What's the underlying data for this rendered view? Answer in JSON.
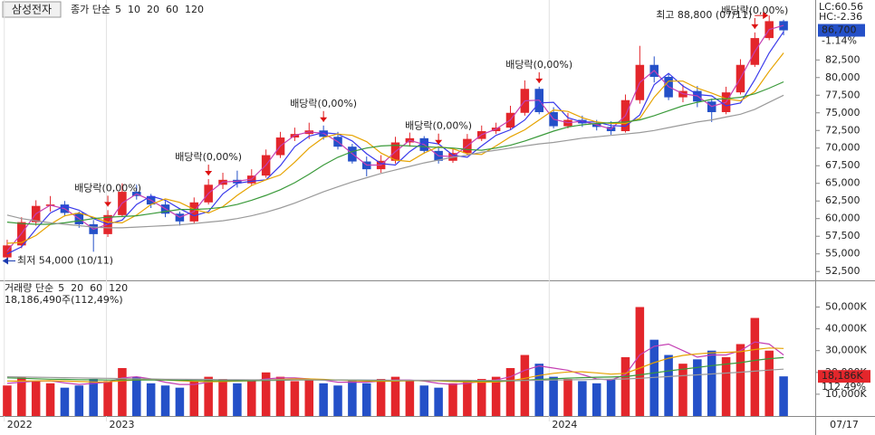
{
  "chart_data": [
    {
      "type": "candlestick",
      "title": "삼성전자",
      "legend_title": "종가 단순",
      "open": [
        54500,
        56200,
        59500,
        61800,
        62000,
        60800,
        59200,
        57800,
        60500,
        63800,
        63200,
        62000,
        60700,
        59600,
        62300,
        64800,
        65500,
        65000,
        66100,
        69000,
        71500,
        72000,
        72500,
        71600,
        70200,
        68100,
        67000,
        68200,
        70800,
        71400,
        69600,
        68200,
        69300,
        71300,
        72400,
        72900,
        75000,
        78400,
        75100,
        73100,
        74000,
        73500,
        73000,
        72400,
        76800,
        81800,
        80100,
        77200,
        78100,
        76600,
        75100,
        77900,
        81800,
        85600,
        88000
      ],
      "high": [
        57000,
        60200,
        62600,
        63200,
        62500,
        61000,
        59800,
        61200,
        65000,
        64800,
        63500,
        62500,
        61000,
        63000,
        65600,
        66500,
        66800,
        67000,
        69800,
        72300,
        72900,
        73600,
        73200,
        72300,
        70600,
        68800,
        69000,
        71600,
        72200,
        71700,
        70000,
        70000,
        72000,
        73200,
        73600,
        76000,
        79600,
        78700,
        75800,
        75000,
        74600,
        74000,
        73800,
        77600,
        84500,
        83000,
        80600,
        79000,
        78800,
        77000,
        78700,
        82600,
        86400,
        88800,
        88200
      ],
      "low": [
        54000,
        55800,
        59000,
        61000,
        60300,
        58700,
        55300,
        57400,
        60200,
        62700,
        61500,
        60200,
        59000,
        59300,
        62000,
        64200,
        64400,
        64700,
        65800,
        68600,
        71000,
        71300,
        71200,
        69800,
        67800,
        66000,
        66500,
        67800,
        70200,
        69200,
        67800,
        67900,
        69000,
        71000,
        72000,
        72600,
        74600,
        74800,
        72800,
        72800,
        73000,
        72500,
        71900,
        72200,
        76300,
        79300,
        76800,
        76500,
        75800,
        73700,
        74800,
        77600,
        81500,
        85300,
        86000
      ],
      "close": [
        56200,
        59500,
        61800,
        62000,
        60800,
        59200,
        57800,
        60500,
        63800,
        63200,
        62000,
        60700,
        59600,
        62300,
        64800,
        65500,
        65000,
        66100,
        69000,
        71500,
        72000,
        72500,
        71600,
        70200,
        68100,
        67000,
        68200,
        70800,
        71400,
        69600,
        68200,
        69300,
        71300,
        72400,
        72900,
        75000,
        78400,
        75100,
        73100,
        74000,
        73500,
        73000,
        72400,
        76800,
        81800,
        80100,
        77200,
        78100,
        76600,
        75100,
        77900,
        81800,
        85600,
        88000,
        86700
      ],
      "up_color": "#e3262b",
      "down_color": "#2450c8",
      "series": [
        {
          "name": "5",
          "color": "#c43fb3",
          "values": [
            55400,
            57900,
            60700,
            61900,
            61400,
            60000,
            58500,
            59200,
            62200,
            63500,
            62600,
            61400,
            60200,
            61000,
            63600,
            65200,
            65300,
            65600,
            67600,
            70300,
            71800,
            72300,
            72100,
            70900,
            69200,
            67600,
            67600,
            69500,
            71100,
            70500,
            68900,
            68800,
            70300,
            71900,
            72700,
            74000,
            76700,
            76800,
            74100,
            73600,
            73800,
            73300,
            72700,
            74600,
            79300,
            81000,
            78700,
            77700,
            77400,
            75900,
            76500,
            79900,
            83700,
            86800,
            87400
          ]
        },
        {
          "name": "10",
          "color": "#3a3aeb",
          "values": [
            55000,
            56000,
            58500,
            60800,
            61800,
            61200,
            60000,
            59200,
            59800,
            62000,
            63200,
            62600,
            61400,
            60400,
            61000,
            63500,
            65000,
            65300,
            65500,
            67500,
            70200,
            71700,
            72200,
            72000,
            71000,
            69200,
            67800,
            67600,
            69500,
            70900,
            70600,
            69000,
            68700,
            70300,
            71800,
            72600,
            74000,
            76400,
            76500,
            74300,
            73700,
            73700,
            73200,
            73100,
            74700,
            79000,
            80600,
            78800,
            77600,
            77400,
            76000,
            76400,
            79700,
            83500,
            86500
          ]
        },
        {
          "name": "20",
          "color": "#e6a300",
          "values": [
            56500,
            56600,
            57600,
            59200,
            60400,
            60800,
            60200,
            59500,
            59400,
            60500,
            62000,
            62800,
            62300,
            61300,
            60800,
            61700,
            63300,
            64700,
            65500,
            66200,
            68000,
            70000,
            71500,
            72000,
            71800,
            70900,
            69300,
            68300,
            68100,
            69300,
            70200,
            69900,
            69200,
            69100,
            70300,
            71600,
            72600,
            74000,
            75400,
            75200,
            74300,
            73700,
            73500,
            73500,
            74200,
            77200,
            79500,
            79500,
            78500,
            77800,
            77000,
            76700,
            78000,
            80900,
            83500
          ]
        },
        {
          "name": "60",
          "color": "#3a9a3a",
          "values": [
            59500,
            59300,
            59200,
            59200,
            59400,
            59700,
            60000,
            60200,
            60300,
            60400,
            60700,
            61000,
            61300,
            61300,
            61400,
            61600,
            62000,
            62600,
            63300,
            64100,
            65100,
            66300,
            67600,
            68700,
            69500,
            70000,
            70300,
            70400,
            70300,
            70200,
            70100,
            70000,
            69800,
            69700,
            70000,
            70400,
            71000,
            71700,
            72400,
            73000,
            73300,
            73500,
            73600,
            73700,
            74000,
            74600,
            75300,
            76000,
            76500,
            76900,
            77000,
            77200,
            77700,
            78500,
            79400
          ]
        },
        {
          "name": "120",
          "color": "#9a9a9a",
          "values": [
            60500,
            60000,
            59700,
            59400,
            59200,
            59000,
            58800,
            58700,
            58700,
            58800,
            58900,
            59000,
            59100,
            59300,
            59500,
            59700,
            60000,
            60400,
            60900,
            61500,
            62200,
            63000,
            63800,
            64500,
            65200,
            65800,
            66400,
            66900,
            67400,
            67900,
            68300,
            68700,
            69000,
            69400,
            69700,
            70000,
            70300,
            70600,
            70800,
            71100,
            71400,
            71600,
            71800,
            72000,
            72200,
            72500,
            72900,
            73300,
            73700,
            74000,
            74400,
            74800,
            75500,
            76500,
            77500
          ]
        }
      ],
      "xlim": [
        -0.5,
        56.2
      ],
      "xticks": [
        {
          "value": -0.2,
          "label": "2022"
        },
        {
          "value": 6.9,
          "label": "2023"
        },
        {
          "value": 37.7,
          "label": "2024"
        }
      ],
      "ylim": [
        51500,
        91000
      ],
      "yticks": [
        {
          "value": 52500,
          "label": "52,500"
        },
        {
          "value": 55000,
          "label": "55,000"
        },
        {
          "value": 57500,
          "label": "57,500"
        },
        {
          "value": 60000,
          "label": "60,000"
        },
        {
          "value": 62500,
          "label": "62,500"
        },
        {
          "value": 65000,
          "label": "65,000"
        },
        {
          "value": 67500,
          "label": "67,500"
        },
        {
          "value": 70000,
          "label": "70,000"
        },
        {
          "value": 72500,
          "label": "72,500"
        },
        {
          "value": 75000,
          "label": "75,000"
        },
        {
          "value": 77500,
          "label": "77,500"
        },
        {
          "value": 80000,
          "label": "80,000"
        },
        {
          "value": 82500,
          "label": "82,500"
        }
      ],
      "annotations": [
        {
          "kind": "dividend",
          "text": "배당락(0,00%)",
          "at": 7
        },
        {
          "kind": "dividend",
          "text": "배당락(0,00%)",
          "at": 14
        },
        {
          "kind": "dividend",
          "text": "배당락(0,00%)",
          "at": 22
        },
        {
          "kind": "dividend",
          "text": "배당락(0,00%)",
          "at": 30
        },
        {
          "kind": "dividend",
          "text": "배당락(0,00%)",
          "at": 37
        },
        {
          "kind": "dividend",
          "text": "배당락(0,00%)",
          "at": 52
        },
        {
          "kind": "high",
          "text": "최고 88,800 (07/11)",
          "at": 53
        },
        {
          "kind": "low",
          "text": "최저 54,000 (10/11)",
          "at": 0
        }
      ],
      "side_labels": [
        {
          "text": "LC:60.56",
          "color": "#e3262b"
        },
        {
          "text": "HC:-2.36",
          "color": "#2450c8"
        }
      ],
      "last_price": {
        "value": 86700,
        "label": "86,700"
      },
      "change_label": "-1.14%"
    },
    {
      "type": "bar",
      "legend_title": "거래량 단순",
      "summary": "18,186,490주(112,49%)",
      "values": [
        14000,
        18000,
        16000,
        15000,
        13000,
        14000,
        17000,
        16000,
        22000,
        18000,
        15000,
        14000,
        13000,
        16000,
        18000,
        17000,
        15000,
        16000,
        20000,
        18000,
        16000,
        17000,
        15000,
        14000,
        16000,
        15000,
        17000,
        18000,
        16000,
        14000,
        13000,
        15000,
        16000,
        17000,
        18000,
        22000,
        28000,
        24000,
        18000,
        17000,
        16000,
        15000,
        17000,
        27000,
        50000,
        35000,
        28000,
        24000,
        26000,
        30000,
        27000,
        33000,
        45000,
        30000,
        18186
      ],
      "series": [
        {
          "name": "5",
          "color": "#c43fb3",
          "values": [
            15000,
            15500,
            16000,
            16200,
            15200,
            14500,
            15000,
            15500,
            17500,
            18000,
            17000,
            15500,
            14500,
            14500,
            15500,
            16500,
            16500,
            16000,
            17000,
            17500,
            17500,
            17000,
            16500,
            15500,
            15500,
            15500,
            16000,
            16500,
            16500,
            16000,
            15000,
            14500,
            15000,
            16000,
            16500,
            18000,
            21000,
            23000,
            22000,
            21000,
            19000,
            17000,
            16500,
            19000,
            28000,
            32000,
            33000,
            30000,
            27000,
            28000,
            28000,
            30000,
            34000,
            33000,
            28000
          ]
        },
        {
          "name": "20",
          "color": "#e6a300",
          "values": [
            16000,
            16000,
            16100,
            16200,
            16000,
            15800,
            15600,
            15700,
            16200,
            16500,
            16700,
            16500,
            16200,
            15900,
            15700,
            15800,
            16000,
            16200,
            16500,
            16800,
            17000,
            17000,
            16800,
            16500,
            16200,
            16000,
            15900,
            16000,
            16200,
            16300,
            16100,
            15800,
            15600,
            15500,
            15600,
            16200,
            17300,
            18600,
            19600,
            20200,
            20300,
            19800,
            19200,
            19600,
            22000,
            24500,
            26500,
            27800,
            28500,
            29000,
            29200,
            29500,
            30500,
            31200,
            31000
          ]
        },
        {
          "name": "60",
          "color": "#3a9a3a",
          "values": [
            17500,
            17300,
            17100,
            16900,
            16800,
            16700,
            16600,
            16500,
            16500,
            16500,
            16500,
            16500,
            16400,
            16300,
            16200,
            16200,
            16200,
            16200,
            16300,
            16400,
            16500,
            16500,
            16500,
            16500,
            16500,
            16400,
            16300,
            16300,
            16300,
            16300,
            16300,
            16200,
            16100,
            16000,
            16000,
            16100,
            16400,
            16800,
            17100,
            17400,
            17600,
            17800,
            17900,
            18100,
            18900,
            19800,
            20700,
            21500,
            22300,
            23100,
            23800,
            24500,
            25500,
            26300,
            26800
          ]
        },
        {
          "name": "120",
          "color": "#9a9a9a",
          "values": [
            18000,
            17900,
            17800,
            17700,
            17600,
            17500,
            17400,
            17300,
            17200,
            17100,
            17000,
            16900,
            16900,
            16800,
            16800,
            16700,
            16700,
            16600,
            16600,
            16600,
            16600,
            16600,
            16500,
            16500,
            16500,
            16500,
            16500,
            16400,
            16400,
            16400,
            16400,
            16400,
            16400,
            16300,
            16300,
            16300,
            16300,
            16400,
            16500,
            16600,
            16700,
            16800,
            16900,
            17000,
            17300,
            17700,
            18100,
            18500,
            18900,
            19300,
            19700,
            20100,
            20600,
            21100,
            21500
          ]
        }
      ],
      "ylim": [
        0,
        61000
      ],
      "yticks": [
        {
          "value": 10000,
          "label": "10,000K"
        },
        {
          "value": 20000,
          "label": "20,000K"
        },
        {
          "value": 30000,
          "label": "30,000K"
        },
        {
          "value": 40000,
          "label": "40,000K"
        },
        {
          "value": 50000,
          "label": "50,000K"
        }
      ],
      "last_value": {
        "value": 18186,
        "label": "18,186K"
      },
      "ratio_label": "112.49%"
    }
  ],
  "date_label": "07/17"
}
